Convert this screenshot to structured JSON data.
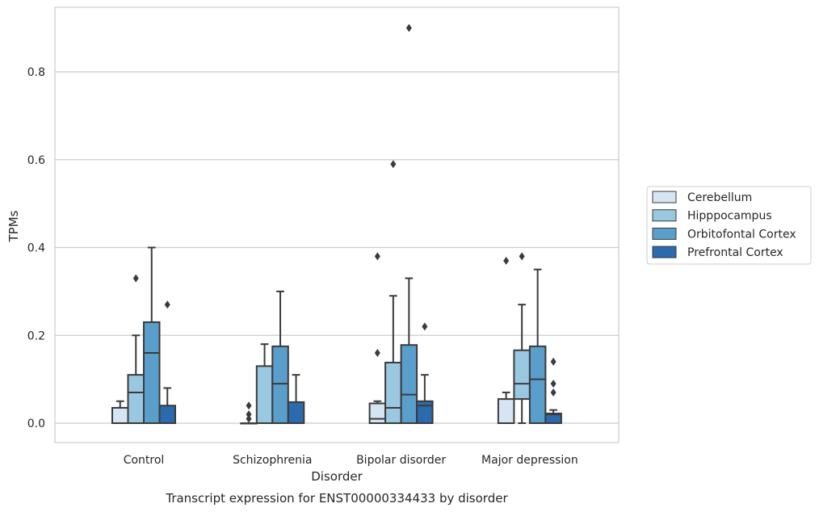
{
  "chart_data": {
    "type": "boxplot",
    "title": "Transcript expression for ENST00000334433 by disorder",
    "xlabel": "Disorder",
    "ylabel": "TPMs",
    "ylim": [
      -0.045,
      0.945
    ],
    "yticks": [
      0.0,
      0.2,
      0.4,
      0.6,
      0.8
    ],
    "ytick_labels": [
      "0.0",
      "0.2",
      "0.4",
      "0.6",
      "0.8"
    ],
    "grid": "horizontal",
    "legend_position": "right",
    "categories": [
      "Control",
      "Schizophrenia",
      "Bipolar disorder",
      "Major depression"
    ],
    "series": [
      {
        "name": "Cerebellum",
        "color": "#d6e5f3",
        "boxes": [
          {
            "whislo": 0.0,
            "q1": 0.0,
            "med": 0.0,
            "q3": 0.035,
            "whishi": 0.05,
            "fliers": []
          },
          {
            "whislo": 0.0,
            "q1": 0.0,
            "med": 0.0,
            "q3": 0.0,
            "whishi": 0.0,
            "fliers": [
              0.04,
              0.02,
              0.01
            ]
          },
          {
            "whislo": 0.0,
            "q1": 0.0,
            "med": 0.01,
            "q3": 0.045,
            "whishi": 0.05,
            "fliers": [
              0.38,
              0.16
            ]
          },
          {
            "whislo": 0.0,
            "q1": 0.0,
            "med": 0.0,
            "q3": 0.055,
            "whishi": 0.07,
            "fliers": [
              0.37
            ]
          }
        ]
      },
      {
        "name": "Hipppocampus",
        "color": "#9ac8e0",
        "boxes": [
          {
            "whislo": 0.0,
            "q1": 0.0,
            "med": 0.07,
            "q3": 0.11,
            "whishi": 0.2,
            "fliers": [
              0.33
            ]
          },
          {
            "whislo": 0.0,
            "q1": 0.0,
            "med": 0.0,
            "q3": 0.13,
            "whishi": 0.18,
            "fliers": []
          },
          {
            "whislo": 0.0,
            "q1": 0.0,
            "med": 0.035,
            "q3": 0.138,
            "whishi": 0.29,
            "fliers": [
              0.59
            ]
          },
          {
            "whislo": 0.0,
            "q1": 0.055,
            "med": 0.09,
            "q3": 0.166,
            "whishi": 0.27,
            "fliers": [
              0.38
            ]
          }
        ]
      },
      {
        "name": "Orbitofontal Cortex",
        "color": "#5a9ecb",
        "boxes": [
          {
            "whislo": 0.0,
            "q1": 0.0,
            "med": 0.16,
            "q3": 0.23,
            "whishi": 0.4,
            "fliers": []
          },
          {
            "whislo": 0.0,
            "q1": 0.0,
            "med": 0.09,
            "q3": 0.175,
            "whishi": 0.3,
            "fliers": []
          },
          {
            "whislo": 0.0,
            "q1": 0.0,
            "med": 0.065,
            "q3": 0.178,
            "whishi": 0.33,
            "fliers": [
              0.9
            ]
          },
          {
            "whislo": 0.0,
            "q1": 0.0,
            "med": 0.1,
            "q3": 0.175,
            "whishi": 0.35,
            "fliers": []
          }
        ]
      },
      {
        "name": "Prefrontal Cortex",
        "color": "#2a6aad",
        "boxes": [
          {
            "whislo": 0.0,
            "q1": 0.0,
            "med": 0.0,
            "q3": 0.04,
            "whishi": 0.08,
            "fliers": [
              0.27
            ]
          },
          {
            "whislo": 0.0,
            "q1": 0.0,
            "med": 0.0,
            "q3": 0.048,
            "whishi": 0.11,
            "fliers": []
          },
          {
            "whislo": 0.0,
            "q1": 0.0,
            "med": 0.04,
            "q3": 0.05,
            "whishi": 0.11,
            "fliers": [
              0.22
            ]
          },
          {
            "whislo": 0.0,
            "q1": 0.0,
            "med": 0.02,
            "q3": 0.022,
            "whishi": 0.03,
            "fliers": [
              0.14,
              0.09,
              0.07
            ]
          }
        ]
      }
    ]
  }
}
